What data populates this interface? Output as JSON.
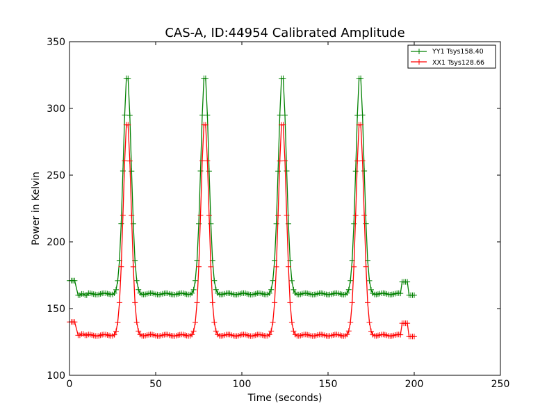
{
  "chart_data": {
    "type": "line",
    "title": "CAS-A, ID:44954 Calibrated Amplitude",
    "xlabel": "Time (seconds)",
    "ylabel": "Power in Kelvin",
    "xlim": [
      0,
      250
    ],
    "ylim": [
      100,
      350
    ],
    "xticks": [
      0,
      50,
      100,
      150,
      200,
      250
    ],
    "yticks": [
      100,
      150,
      200,
      250,
      300,
      350
    ],
    "grid": false,
    "legend_position": "top-right",
    "marker": "plus",
    "series": [
      {
        "name": "YY1 Tsys158.40",
        "color": "#008000",
        "baseline": 161,
        "segments": [
          {
            "x": [
              0,
              1,
              2,
              3
            ],
            "y": [
              171,
              171,
              171,
              171
            ]
          },
          {
            "x": [
              5,
              6,
              7,
              8,
              9,
              10
            ],
            "y": [
              160,
              160,
              161,
              161,
              160,
              160
            ]
          }
        ],
        "peaks": [
          {
            "center": 33.5,
            "height": 327
          },
          {
            "center": 78.5,
            "height": 327
          },
          {
            "center": 123.5,
            "height": 327
          },
          {
            "center": 168.5,
            "height": 327
          }
        ],
        "tail": [
          {
            "x": [
              193,
              194,
              195,
              196
            ],
            "y": [
              170,
              170,
              170,
              170
            ]
          },
          {
            "x": [
              197,
              198,
              199,
              200
            ],
            "y": [
              160,
              160,
              160,
              160
            ]
          }
        ]
      },
      {
        "name": "XX1 Tsys128.66",
        "color": "#ff0000",
        "baseline": 130,
        "segments": [
          {
            "x": [
              0,
              1,
              2,
              3
            ],
            "y": [
              140,
              140,
              140,
              140
            ]
          },
          {
            "x": [
              5,
              6,
              7,
              8,
              9,
              10
            ],
            "y": [
              130,
              130,
              131,
              131,
              130,
              130
            ]
          }
        ],
        "peaks": [
          {
            "center": 33.5,
            "height": 292
          },
          {
            "center": 78.5,
            "height": 292
          },
          {
            "center": 123.5,
            "height": 292
          },
          {
            "center": 168.5,
            "height": 292
          }
        ],
        "tail": [
          {
            "x": [
              193,
              194,
              195,
              196
            ],
            "y": [
              139,
              139,
              139,
              139
            ]
          },
          {
            "x": [
              197,
              198,
              199,
              200
            ],
            "y": [
              129,
              129,
              129,
              129
            ]
          }
        ]
      }
    ]
  }
}
